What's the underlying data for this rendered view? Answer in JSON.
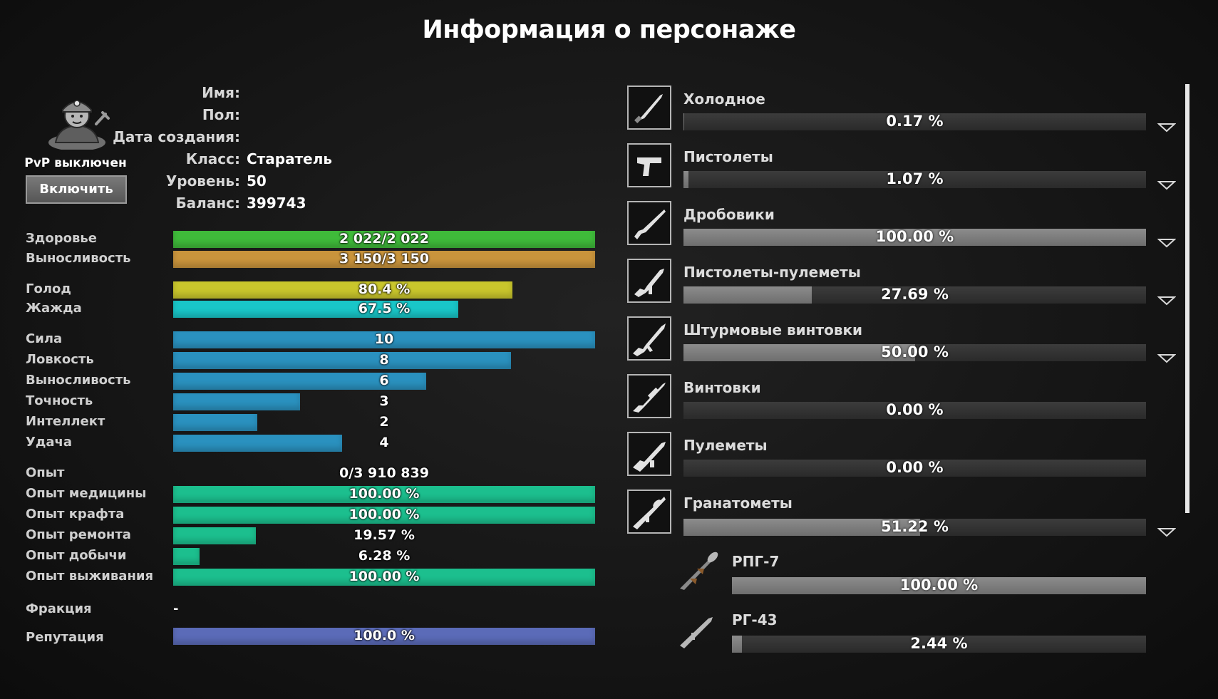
{
  "title": "Информация о персонаже",
  "profile": {
    "pvp_status": "PvP выключен",
    "enable_button": "Включить",
    "fields": [
      {
        "label": "Имя:",
        "value": ""
      },
      {
        "label": "Пол:",
        "value": ""
      },
      {
        "label": "Дата создания:",
        "value": ""
      },
      {
        "label": "Класс:",
        "value": "Старатель"
      },
      {
        "label": "Уровень:",
        "value": "50"
      },
      {
        "label": "Баланс:",
        "value": "399743"
      }
    ]
  },
  "stats": [
    {
      "label": "Здоровье",
      "text": "2 022/2 022",
      "fill": 1.0,
      "color": "#3fba3a"
    },
    {
      "label": "Выносливость",
      "text": "3 150/3 150",
      "fill": 1.0,
      "color": "#c9943c"
    },
    {
      "label": "Голод",
      "text": "80.4 %",
      "fill": 0.804,
      "color": "#c9c62c"
    },
    {
      "label": "Жажда",
      "text": "67.5 %",
      "fill": 0.675,
      "color": "#19c6c8"
    },
    {
      "label": "Сила",
      "text": "10",
      "fill": 1.0,
      "color": "#2a91bf"
    },
    {
      "label": "Ловкость",
      "text": "8",
      "fill": 0.8,
      "color": "#2a91bf"
    },
    {
      "label": "Выносливость",
      "text": "6",
      "fill": 0.6,
      "color": "#2a91bf"
    },
    {
      "label": "Точность",
      "text": "3",
      "fill": 0.3,
      "color": "#2a91bf"
    },
    {
      "label": "Интеллект",
      "text": "2",
      "fill": 0.2,
      "color": "#2a91bf"
    },
    {
      "label": "Удача",
      "text": "4",
      "fill": 0.4,
      "color": "#2a91bf"
    },
    {
      "label": "Опыт",
      "text": "0/3 910 839",
      "fill": 0.0,
      "color": "#1cbf8e"
    },
    {
      "label": "Опыт медицины",
      "text": "100.00 %",
      "fill": 1.0,
      "color": "#1cbf8e"
    },
    {
      "label": "Опыт крафта",
      "text": "100.00 %",
      "fill": 1.0,
      "color": "#1cbf8e"
    },
    {
      "label": "Опыт ремонта",
      "text": "19.57 %",
      "fill": 0.1957,
      "color": "#1cbf8e"
    },
    {
      "label": "Опыт добычи",
      "text": "6.28 %",
      "fill": 0.0628,
      "color": "#1cbf8e"
    },
    {
      "label": "Опыт выживания",
      "text": "100.00 %",
      "fill": 1.0,
      "color": "#1cbf8e"
    },
    {
      "label": "Фракция",
      "text": "-",
      "fill": 0.0,
      "color": "#1cbf8e"
    },
    {
      "label": "Репутация",
      "text": "100.0 %",
      "fill": 1.0,
      "color": "#5b6bb8"
    }
  ],
  "weapons": [
    {
      "name": "Холодное",
      "text": "0.17 %",
      "fill": 0.0017,
      "icon": "knife-icon",
      "expandable": true
    },
    {
      "name": "Пистолеты",
      "text": "1.07 %",
      "fill": 0.0107,
      "icon": "pistol-icon",
      "expandable": true
    },
    {
      "name": "Дробовики",
      "text": "100.00 %",
      "fill": 1.0,
      "icon": "shotgun-icon",
      "expandable": true
    },
    {
      "name": "Пистолеты-пулеметы",
      "text": "27.69 %",
      "fill": 0.2769,
      "icon": "smg-icon",
      "expandable": true
    },
    {
      "name": "Штурмовые винтовки",
      "text": "50.00 %",
      "fill": 0.5,
      "icon": "assault-rifle-icon",
      "expandable": true
    },
    {
      "name": "Винтовки",
      "text": "0.00 %",
      "fill": 0.0,
      "icon": "sniper-rifle-icon",
      "expandable": false
    },
    {
      "name": "Пулеметы",
      "text": "0.00 %",
      "fill": 0.0,
      "icon": "machine-gun-icon",
      "expandable": false
    },
    {
      "name": "Гранатометы",
      "text": "51.22 %",
      "fill": 0.5122,
      "icon": "grenade-launcher-icon",
      "expandable": true
    }
  ],
  "sub_weapons": [
    {
      "name": "РПГ-7",
      "text": "100.00 %",
      "fill": 1.0,
      "icon": "rpg7-icon"
    },
    {
      "name": "РГ-43",
      "text": "2.44 %",
      "fill": 0.0244,
      "icon": "rg43-icon"
    }
  ]
}
